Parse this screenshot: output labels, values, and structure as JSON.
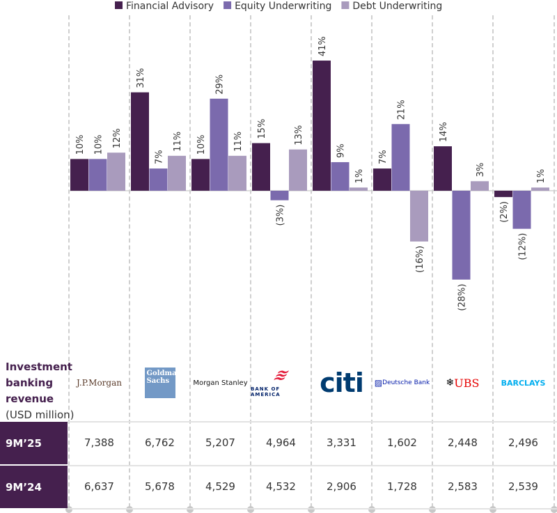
{
  "chart_data": {
    "type": "bar",
    "categories": [
      "J.P.Morgan",
      "Goldman Sachs",
      "Morgan Stanley",
      "Bank of America",
      "Citi",
      "Deutsche Bank",
      "UBS",
      "Barclays"
    ],
    "series": [
      {
        "name": "Financial Advisory",
        "color": "#45204e",
        "values": [
          10,
          31,
          10,
          15,
          41,
          7,
          14,
          -2
        ],
        "labels": [
          "10%",
          "31%",
          "10%",
          "15%",
          "41%",
          "7%",
          "14%",
          "(2%)"
        ]
      },
      {
        "name": "Equity Underwriting",
        "color": "#7b6aad",
        "values": [
          10,
          7,
          29,
          -3,
          9,
          21,
          -28,
          -12
        ],
        "labels": [
          "10%",
          "7%",
          "29%",
          "(3%)",
          "9%",
          "21%",
          "(28%)",
          "(12%)"
        ]
      },
      {
        "name": "Debt Underwriting",
        "color": "#a99bbd",
        "values": [
          12,
          11,
          11,
          13,
          1,
          -16,
          3,
          1
        ],
        "labels": [
          "12%",
          "11%",
          "11%",
          "13%",
          "1%",
          "(16%)",
          "3%",
          "1%"
        ]
      }
    ],
    "ylabel": "",
    "xlabel": "",
    "title": ""
  },
  "table": {
    "label_bold": "Investment banking revenue",
    "label_unit": "(USD million)",
    "logos": [
      "J.P.Morgan",
      "Goldman Sachs",
      "Morgan Stanley",
      "BANK OF AMERICA",
      "citi",
      "Deutsche Bank",
      "UBS",
      "BARCLAYS"
    ],
    "rows": [
      {
        "label": "9M’25",
        "values": [
          "7,388",
          "6,762",
          "5,207",
          "4,964",
          "3,331",
          "1,602",
          "2,448",
          "2,496"
        ]
      },
      {
        "label": "9M’24",
        "values": [
          "6,637",
          "5,678",
          "4,529",
          "4,532",
          "2,906",
          "1,728",
          "2,583",
          "2,539"
        ]
      }
    ]
  }
}
